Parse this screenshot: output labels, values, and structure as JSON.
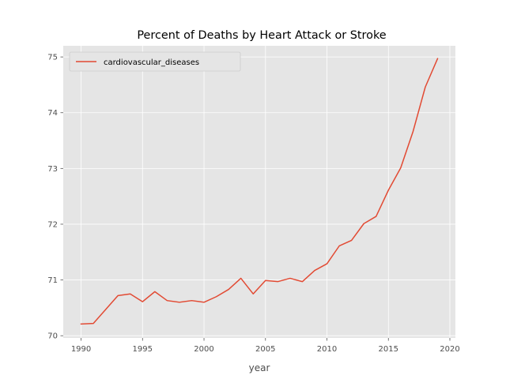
{
  "chart_data": {
    "type": "line",
    "title": "Percent of Deaths by Heart Attack or Stroke",
    "xlabel": "year",
    "ylabel": "",
    "xlim": [
      1988.55,
      2020.45
    ],
    "ylim": [
      69.96,
      75.2
    ],
    "xticks": [
      1990,
      1995,
      2000,
      2005,
      2010,
      2015,
      2020
    ],
    "yticks": [
      70,
      71,
      72,
      73,
      74,
      75
    ],
    "grid": true,
    "legend_position": "top-left",
    "series": [
      {
        "name": "cardiovascular_diseases",
        "color": "#e24a33",
        "x": [
          1990,
          1991,
          1992,
          1993,
          1994,
          1995,
          1996,
          1997,
          1998,
          1999,
          2000,
          2001,
          2002,
          2003,
          2004,
          2005,
          2006,
          2007,
          2008,
          2009,
          2010,
          2011,
          2012,
          2013,
          2014,
          2015,
          2016,
          2017,
          2018,
          2019
        ],
        "y": [
          70.21,
          70.22,
          70.47,
          70.72,
          70.75,
          70.61,
          70.79,
          70.63,
          70.6,
          70.63,
          70.6,
          70.7,
          70.83,
          71.03,
          70.75,
          70.99,
          70.97,
          71.03,
          70.97,
          71.17,
          71.29,
          71.61,
          71.71,
          72.01,
          72.14,
          72.61,
          73.01,
          73.66,
          74.46,
          74.97
        ]
      }
    ]
  }
}
